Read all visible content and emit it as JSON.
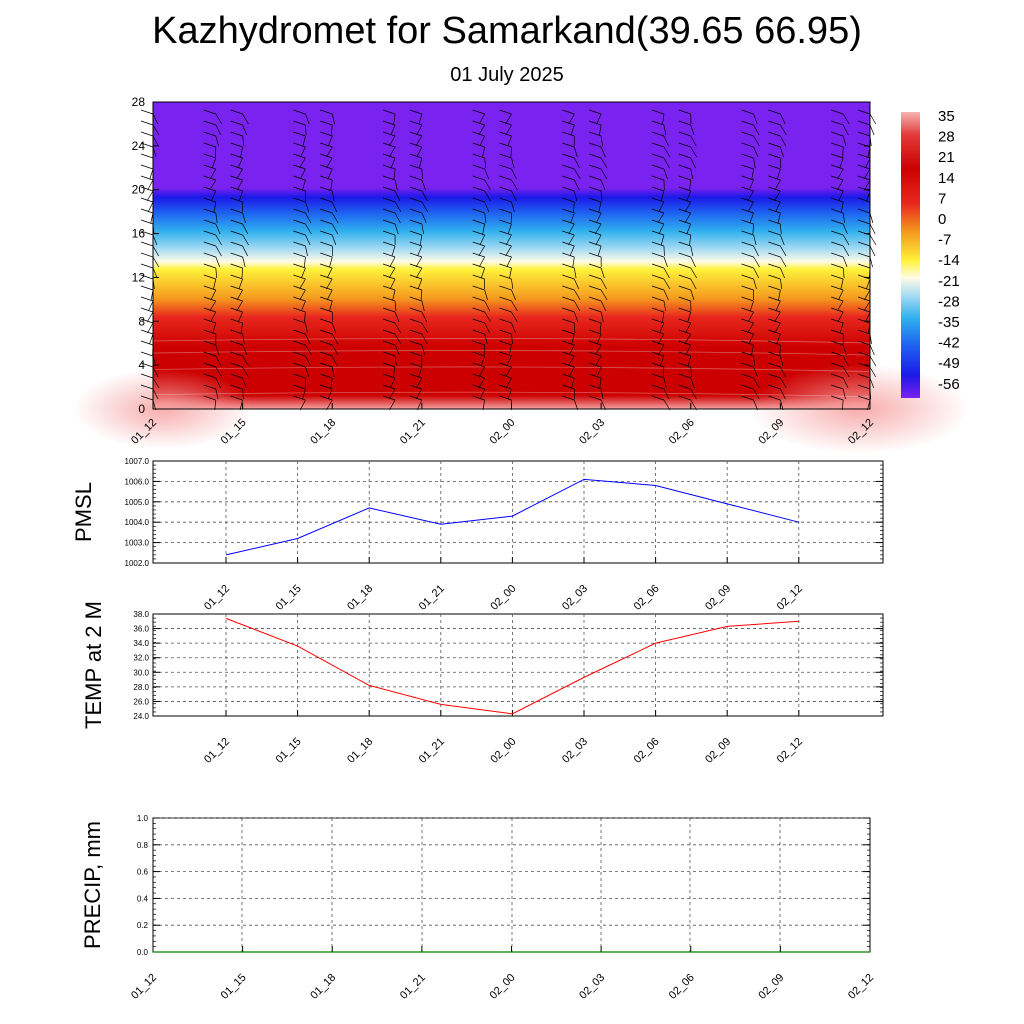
{
  "page": {
    "title": "Kazhydromet for Samarkand(39.65 66.95)",
    "subtitle": "01 July 2025"
  },
  "chart_data": [
    {
      "type": "heatmap",
      "name": "temperature-cross-section",
      "title": "",
      "x_ticks": [
        "01_12",
        "01_15",
        "01_18",
        "01_21",
        "02_00",
        "02_03",
        "02_06",
        "02_09",
        "02_12"
      ],
      "y_ticks": [
        0,
        4,
        8,
        12,
        16,
        20,
        24,
        28
      ],
      "ylim": [
        0,
        28
      ],
      "colorbar_labels": [
        "35",
        "28",
        "21",
        "14",
        "7",
        "0",
        "-7",
        "-14",
        "-21",
        "-28",
        "-35",
        "-42",
        "-49",
        "-56"
      ],
      "colors": {
        "hot_surface": "#f7a3a3",
        "deep_red": "#cc0000",
        "red": "#e8281e",
        "orange": "#f59a1e",
        "yellow": "#fff23a",
        "light_blue": "#a8dcf2",
        "sky_blue": "#2fb0ee",
        "blue": "#1e60f0",
        "deep_blue": "#1c18e8",
        "violet": "#7a22f0"
      },
      "wind_barbs": true
    },
    {
      "type": "line",
      "name": "pmsl",
      "ylabel": "PMSL",
      "categories": [
        "01_12",
        "01_15",
        "01_18",
        "01_21",
        "02_00",
        "02_03",
        "02_06",
        "02_09",
        "02_12"
      ],
      "values": [
        1002.4,
        1003.2,
        1004.7,
        1003.9,
        1004.3,
        1006.1,
        1005.8,
        1004.9,
        1004.0
      ],
      "ylim": [
        1002.0,
        1007.0
      ],
      "y_ticks": [
        "1002.0",
        "1003.0",
        "1004.0",
        "1005.0",
        "1006.0",
        "1007.0"
      ],
      "color": "#0000ff",
      "grid": true
    },
    {
      "type": "line",
      "name": "temp2m",
      "ylabel": "TEMP at 2 M",
      "categories": [
        "01_12",
        "01_15",
        "01_18",
        "01_21",
        "02_00",
        "02_03",
        "02_06",
        "02_09",
        "02_12"
      ],
      "values": [
        37.4,
        33.6,
        28.2,
        25.6,
        24.3,
        29.3,
        34.0,
        36.3,
        37.0
      ],
      "ylim": [
        24.0,
        38.0
      ],
      "y_ticks": [
        "24.0",
        "26.0",
        "28.0",
        "30.0",
        "32.0",
        "34.0",
        "36.0",
        "38.0"
      ],
      "color": "#ff0000",
      "grid": true
    },
    {
      "type": "line",
      "name": "precip",
      "ylabel": "PRECIP, mm",
      "categories": [
        "01_12",
        "01_15",
        "01_18",
        "01_21",
        "02_00",
        "02_03",
        "02_06",
        "02_09",
        "02_12"
      ],
      "values": [
        0,
        0,
        0,
        0,
        0,
        0,
        0,
        0,
        0
      ],
      "ylim": [
        0.0,
        1.0
      ],
      "y_ticks": [
        "0.0",
        "0.2",
        "0.4",
        "0.6",
        "0.8",
        "1.0"
      ],
      "color": "#008000",
      "grid": true
    }
  ]
}
